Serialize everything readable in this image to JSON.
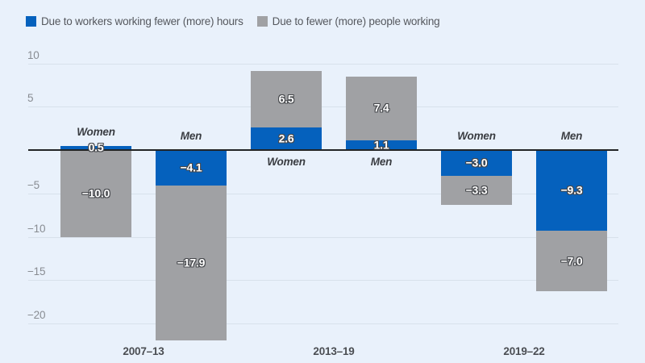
{
  "colors": {
    "background": "#e9f1fb",
    "hours_blue": "#0561bd",
    "people_gray": "#a0a1a4",
    "gridline": "#d8e1eb",
    "zero_line": "#222426",
    "tick_label": "#888c92",
    "value_text": "#ffffff",
    "value_outline": "#45474b",
    "group_label": "#3a3d42",
    "period_label": "#4b4e53"
  },
  "legend": [
    {
      "label": "Due to workers working fewer (more) hours",
      "color_key": "hours_blue"
    },
    {
      "label": "Due to fewer (more) people working",
      "color_key": "people_gray"
    }
  ],
  "chart_data": {
    "type": "bar",
    "stacked": true,
    "orientation": "vertical",
    "grid": true,
    "legend_position": "top-left",
    "yticks": [
      10,
      5,
      -5,
      -10,
      -15,
      -20
    ],
    "ylim": [
      -23,
      11.7
    ],
    "categories": [
      "2007–13",
      "2013–19",
      "2019–22"
    ],
    "groups": [
      {
        "period": "2007–13",
        "bars": [
          {
            "label": "Women",
            "hours": 0.5,
            "hours_display": "0.5",
            "people": -10.0,
            "people_display": "−10.0"
          },
          {
            "label": "Men",
            "hours": -4.1,
            "hours_display": "−4.1",
            "people": -17.9,
            "people_display": "−17.9"
          }
        ]
      },
      {
        "period": "2013–19",
        "bars": [
          {
            "label": "Women",
            "hours": 2.6,
            "hours_display": "2.6",
            "people": 6.5,
            "people_display": "6.5"
          },
          {
            "label": "Men",
            "hours": 1.1,
            "hours_display": "1.1",
            "people": 7.4,
            "people_display": "7.4"
          }
        ]
      },
      {
        "period": "2019–22",
        "bars": [
          {
            "label": "Women",
            "hours": -3.0,
            "hours_display": "−3.0",
            "people": -3.3,
            "people_display": "−3.3"
          },
          {
            "label": "Men",
            "hours": -9.3,
            "hours_display": "−9.3",
            "people": -7.0,
            "people_display": "−7.0"
          }
        ]
      }
    ],
    "series": [
      {
        "name": "Due to workers working fewer (more) hours",
        "values": [
          0.5,
          -4.1,
          2.6,
          1.1,
          -3.0,
          -9.3
        ]
      },
      {
        "name": "Due to fewer (more) people working",
        "values": [
          -10.0,
          -17.9,
          6.5,
          7.4,
          -3.3,
          -7.0
        ]
      }
    ]
  }
}
